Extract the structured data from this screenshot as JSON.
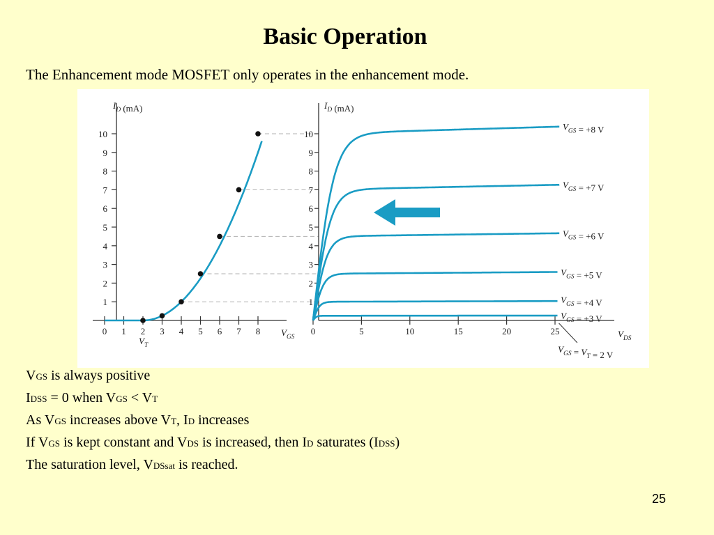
{
  "slide": {
    "title": "Basic Operation",
    "subtitle": "The Enhancement mode MOSFET only operates in the enhancement mode.",
    "page_number": "25"
  },
  "bullets": [
    {
      "parts": [
        {
          "t": "V"
        },
        {
          "t": "GS",
          "sub": true
        },
        {
          "t": " is always positive"
        }
      ]
    },
    {
      "parts": [
        {
          "t": "I"
        },
        {
          "t": "DSS",
          "sub": true
        },
        {
          "t": " = 0 when V"
        },
        {
          "t": "GS",
          "sub": true
        },
        {
          "t": " < V"
        },
        {
          "t": "T",
          "sub": true
        }
      ]
    },
    {
      "parts": [
        {
          "t": "As V"
        },
        {
          "t": "GS",
          "sub": true
        },
        {
          "t": " increases above V"
        },
        {
          "t": "T",
          "sub": true
        },
        {
          "t": ", I"
        },
        {
          "t": "D",
          "sub": true
        },
        {
          "t": " increases"
        }
      ]
    },
    {
      "parts": [
        {
          "t": "If V"
        },
        {
          "t": "GS",
          "sub": true
        },
        {
          "t": " is kept constant and V"
        },
        {
          "t": "DS",
          "sub": true
        },
        {
          "t": " is increased, then I"
        },
        {
          "t": "D",
          "sub": true
        },
        {
          "t": " saturates (I"
        },
        {
          "t": "DSS",
          "sub": true
        },
        {
          "t": ")"
        }
      ]
    },
    {
      "parts": [
        {
          "t": "The saturation level, V"
        },
        {
          "t": "DSsat",
          "sub": true
        },
        {
          "t": "  is reached."
        }
      ]
    }
  ],
  "colors": {
    "background": "#ffffcc",
    "curve": "#1a9cc4",
    "arrow": "#1a9cc4",
    "guide": "#b0b0b0",
    "axis": "#333333"
  },
  "chart_data": [
    {
      "type": "line",
      "name": "transfer",
      "ylabel": "I_D (mA)",
      "xlabel": "V_GS",
      "xticks": [
        0,
        1,
        2,
        3,
        4,
        5,
        6,
        7,
        8
      ],
      "yticks": [
        1,
        2,
        3,
        4,
        5,
        6,
        7,
        8,
        9,
        10
      ],
      "xlim": [
        0,
        8
      ],
      "ylim": [
        0,
        10
      ],
      "vt_label": "V_T",
      "vt": 2,
      "points": [
        [
          2,
          0
        ],
        [
          3,
          0.25
        ],
        [
          4,
          1
        ],
        [
          5,
          2.5
        ],
        [
          6,
          4.5
        ],
        [
          7,
          7
        ],
        [
          8,
          10
        ]
      ]
    },
    {
      "type": "line",
      "name": "drain-characteristics",
      "ylabel": "I_D (mA)",
      "xlabel": "V_DS",
      "xticks": [
        0,
        5,
        10,
        15,
        20,
        25
      ],
      "yticks": [
        1,
        2,
        3,
        4,
        5,
        6,
        7,
        8,
        9,
        10
      ],
      "xlim": [
        0,
        25
      ],
      "ylim": [
        0,
        10
      ],
      "series": [
        {
          "label": "V_GS = +8 V",
          "sat": 10
        },
        {
          "label": "V_GS = +7 V",
          "sat": 7
        },
        {
          "label": "V_GS = +6 V",
          "sat": 4.5
        },
        {
          "label": "V_GS = +5 V",
          "sat": 2.5
        },
        {
          "label": "V_GS = +4 V",
          "sat": 1
        },
        {
          "label": "V_GS = +3 V",
          "sat": 0.25
        }
      ],
      "vt_curve_label": "V_GS = V_T = 2 V"
    }
  ]
}
